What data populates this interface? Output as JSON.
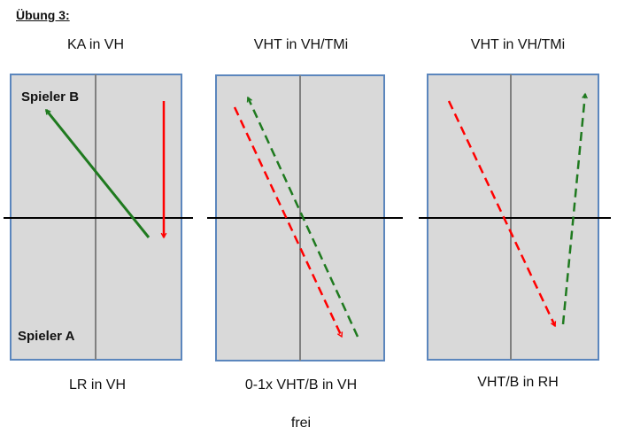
{
  "heading": "Übung 3:",
  "panels": [
    {
      "top_label": "KA in VH",
      "bottom_label": "LR in VH"
    },
    {
      "top_label": "VHT in VH/TMi",
      "bottom_label": "0-1x VHT/B in VH"
    },
    {
      "top_label": "VHT in VH/TMi",
      "bottom_label": "VHT/B in RH"
    }
  ],
  "players": {
    "b": "Spieler B",
    "a": "Spieler A"
  },
  "footer": "frei",
  "colors": {
    "court_fill": "#d9d9d9",
    "court_border": "#5b86bd",
    "net": "#000000",
    "center_line": "#808080",
    "green_arrow": "#1f7a1f",
    "red_arrow": "#ff0000"
  }
}
